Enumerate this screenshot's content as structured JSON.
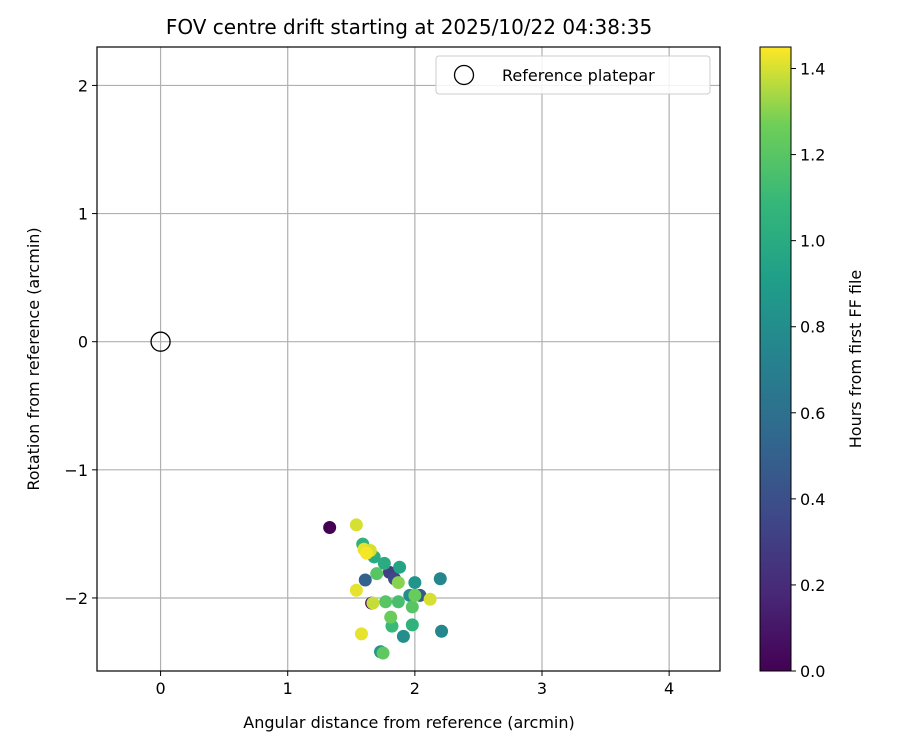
{
  "chart_data": {
    "type": "scatter",
    "title": "FOV centre drift starting at 2025/10/22 04:38:35",
    "xlabel": "Angular distance from reference (arcmin)",
    "ylabel": "Rotation from reference (arcmin)",
    "xlim": [
      -0.5,
      4.4
    ],
    "ylim": [
      -2.57,
      2.3
    ],
    "xticks": [
      0,
      1,
      2,
      3,
      4
    ],
    "yticks": [
      -2,
      -1,
      0,
      1,
      2
    ],
    "grid": true,
    "legend": {
      "placement": "top-right",
      "label": "Reference platepar"
    },
    "reference_point": {
      "x": 0,
      "y": 0
    },
    "colorbar": {
      "label": "Hours from first FF file",
      "range": [
        0,
        1.45
      ],
      "ticks": [
        0.0,
        0.2,
        0.4,
        0.6,
        0.8,
        1.0,
        1.2,
        1.4
      ],
      "tick_labels": [
        "0.0",
        "0.2",
        "0.4",
        "0.6",
        "0.8",
        "1.0",
        "1.2",
        "1.4"
      ],
      "colormap": "viridis"
    },
    "points": [
      {
        "x": 1.33,
        "y": -1.45,
        "t": 0.0
      },
      {
        "x": 1.66,
        "y": -2.04,
        "t": 0.05
      },
      {
        "x": 1.61,
        "y": -1.86,
        "t": 0.5
      },
      {
        "x": 1.8,
        "y": -1.8,
        "t": 0.3
      },
      {
        "x": 2.04,
        "y": -1.98,
        "t": 0.45
      },
      {
        "x": 1.84,
        "y": -1.85,
        "t": 0.35
      },
      {
        "x": 2.2,
        "y": -1.85,
        "t": 0.75
      },
      {
        "x": 2.21,
        "y": -2.26,
        "t": 0.75
      },
      {
        "x": 1.91,
        "y": -2.3,
        "t": 0.8
      },
      {
        "x": 1.73,
        "y": -2.42,
        "t": 0.85
      },
      {
        "x": 2.0,
        "y": -1.88,
        "t": 0.85
      },
      {
        "x": 1.96,
        "y": -1.98,
        "t": 0.8
      },
      {
        "x": 1.76,
        "y": -1.73,
        "t": 1.0
      },
      {
        "x": 1.88,
        "y": -1.76,
        "t": 0.95
      },
      {
        "x": 1.68,
        "y": -1.68,
        "t": 1.0
      },
      {
        "x": 1.59,
        "y": -1.58,
        "t": 1.05
      },
      {
        "x": 1.98,
        "y": -2.21,
        "t": 1.05
      },
      {
        "x": 1.82,
        "y": -2.22,
        "t": 1.1
      },
      {
        "x": 1.87,
        "y": -2.03,
        "t": 1.15
      },
      {
        "x": 1.77,
        "y": -2.03,
        "t": 1.2
      },
      {
        "x": 1.7,
        "y": -1.81,
        "t": 1.2
      },
      {
        "x": 1.81,
        "y": -2.15,
        "t": 1.25
      },
      {
        "x": 1.98,
        "y": -2.07,
        "t": 1.2
      },
      {
        "x": 2.0,
        "y": -1.98,
        "t": 1.25
      },
      {
        "x": 1.75,
        "y": -2.43,
        "t": 1.22
      },
      {
        "x": 1.87,
        "y": -1.88,
        "t": 1.3
      },
      {
        "x": 1.54,
        "y": -1.43,
        "t": 1.4
      },
      {
        "x": 1.6,
        "y": -1.62,
        "t": 1.42
      },
      {
        "x": 1.65,
        "y": -1.63,
        "t": 1.4
      },
      {
        "x": 1.62,
        "y": -1.65,
        "t": 1.44
      },
      {
        "x": 1.67,
        "y": -2.04,
        "t": 1.38
      },
      {
        "x": 1.54,
        "y": -1.94,
        "t": 1.42
      },
      {
        "x": 1.58,
        "y": -2.28,
        "t": 1.42
      },
      {
        "x": 2.12,
        "y": -2.01,
        "t": 1.4
      }
    ]
  }
}
